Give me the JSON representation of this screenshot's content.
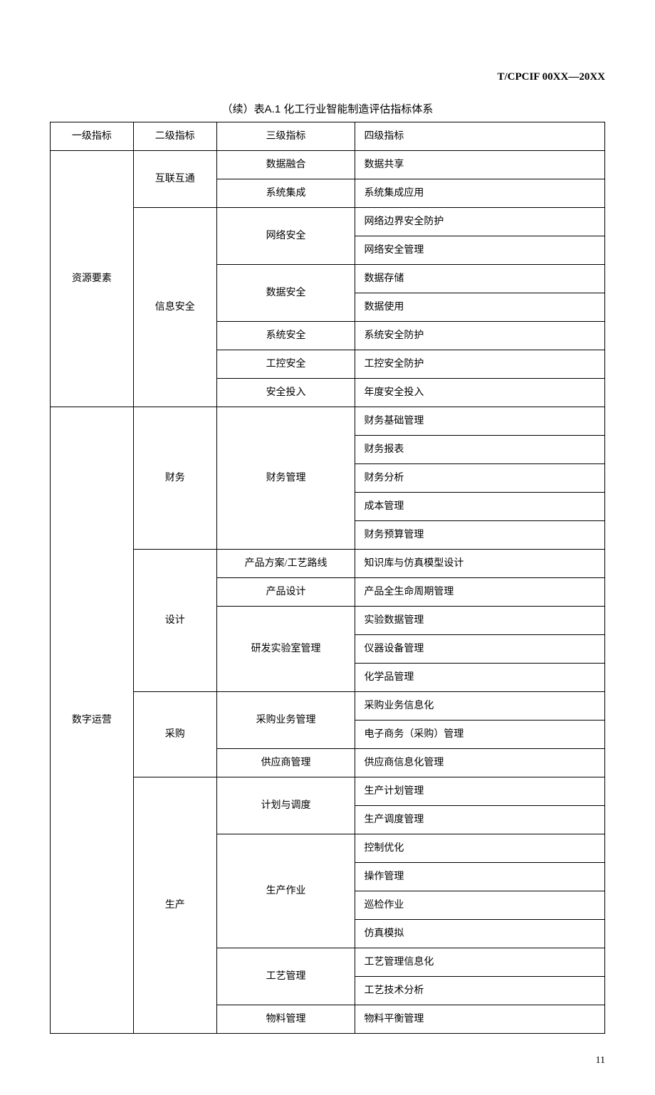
{
  "header_code": "T/CPCIF 00XX—20XX",
  "table_caption": "（续）表A.1 化工行业智能制造评估指标体系",
  "columns": [
    "一级指标",
    "二级指标",
    "三级指标",
    "四级指标"
  ],
  "page_number": "11",
  "rows": [
    {
      "l1": "资源要素",
      "l1_span": 9,
      "l2": "互联互通",
      "l2_span": 2,
      "l3": "数据融合",
      "l3_span": 1,
      "l4": "数据共享"
    },
    {
      "l3": "系统集成",
      "l3_span": 1,
      "l4": "系统集成应用"
    },
    {
      "l2": "信息安全",
      "l2_span": 7,
      "l3": "网络安全",
      "l3_span": 2,
      "l4": "网络边界安全防护"
    },
    {
      "l4": "网络安全管理"
    },
    {
      "l3": "数据安全",
      "l3_span": 2,
      "l4": "数据存储"
    },
    {
      "l4": "数据使用"
    },
    {
      "l3": "系统安全",
      "l3_span": 1,
      "l4": "系统安全防护"
    },
    {
      "l3": "工控安全",
      "l3_span": 1,
      "l4": "工控安全防护"
    },
    {
      "l3": "安全投入",
      "l3_span": 1,
      "l4": "年度安全投入"
    },
    {
      "l1": "数字运营",
      "l1_span": 22,
      "l2": "财务",
      "l2_span": 5,
      "l3": "财务管理",
      "l3_span": 5,
      "l4": "财务基础管理"
    },
    {
      "l4": "财务报表"
    },
    {
      "l4": "财务分析"
    },
    {
      "l4": "成本管理"
    },
    {
      "l4": "财务预算管理"
    },
    {
      "l2": "设计",
      "l2_span": 5,
      "l3": "产品方案/工艺路线",
      "l3_span": 1,
      "l4": "知识库与仿真模型设计"
    },
    {
      "l3": "产品设计",
      "l3_span": 1,
      "l4": "产品全生命周期管理"
    },
    {
      "l3": "研发实验室管理",
      "l3_span": 3,
      "l4": "实验数据管理"
    },
    {
      "l4": "仪器设备管理"
    },
    {
      "l4": "化学品管理"
    },
    {
      "l2": "采购",
      "l2_span": 3,
      "l3": "采购业务管理",
      "l3_span": 2,
      "l4": "采购业务信息化"
    },
    {
      "l4": "电子商务（采购）管理"
    },
    {
      "l3": "供应商管理",
      "l3_span": 1,
      "l4": "供应商信息化管理"
    },
    {
      "l2": "生产",
      "l2_span": 9,
      "l3": "计划与调度",
      "l3_span": 2,
      "l4": "生产计划管理"
    },
    {
      "l4": "生产调度管理"
    },
    {
      "l3": "生产作业",
      "l3_span": 4,
      "l4": "控制优化"
    },
    {
      "l4": "操作管理"
    },
    {
      "l4": "巡检作业"
    },
    {
      "l4": "仿真模拟"
    },
    {
      "l3": "工艺管理",
      "l3_span": 2,
      "l4": "工艺管理信息化"
    },
    {
      "l4": "工艺技术分析"
    },
    {
      "l3": "物料管理",
      "l3_span": 1,
      "l4": "物料平衡管理"
    }
  ]
}
